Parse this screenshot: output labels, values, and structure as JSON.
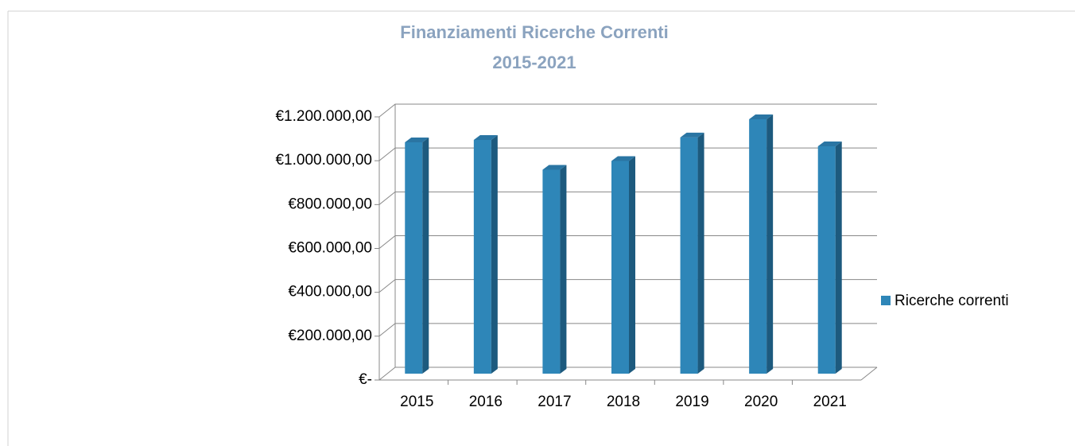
{
  "chart_data": {
    "type": "bar3d",
    "title": "Finanziamenti Ricerche Correnti",
    "subtitle": "2015-2021",
    "categories": [
      "2015",
      "2016",
      "2017",
      "2018",
      "2019",
      "2020",
      "2021"
    ],
    "series": [
      {
        "name": "Ricerche correnti",
        "color": "#2e86b8",
        "values": [
          1055000,
          1066000,
          930000,
          970000,
          1077000,
          1160000,
          1037000
        ]
      }
    ],
    "ylim": [
      0,
      1200000
    ],
    "yticks": [
      {
        "value": 0,
        "label": "€-"
      },
      {
        "value": 200000,
        "label": "€200.000,00"
      },
      {
        "value": 400000,
        "label": "€400.000,00"
      },
      {
        "value": 600000,
        "label": "€600.000,00"
      },
      {
        "value": 800000,
        "label": "€800.000,00"
      },
      {
        "value": 1000000,
        "label": "€1.000.000,00"
      },
      {
        "value": 1200000,
        "label": "€1.200.000,00"
      }
    ],
    "grid": true,
    "legend": "right"
  }
}
